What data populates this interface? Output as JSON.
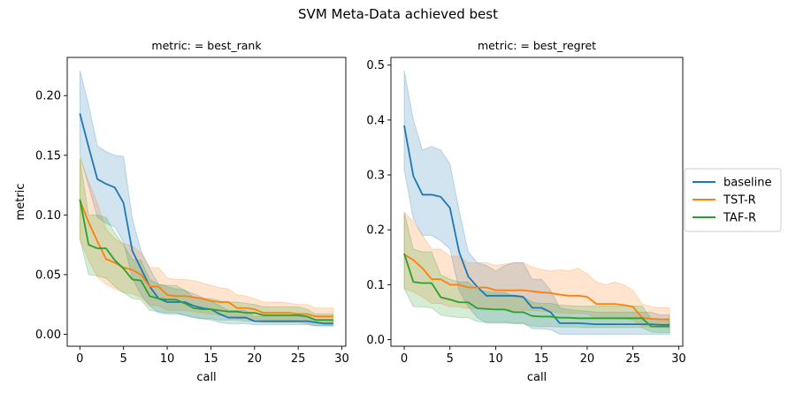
{
  "figure": {
    "suptitle": "SVM Meta-Data achieved best"
  },
  "legend": {
    "placement": "right-center",
    "entries": [
      {
        "name": "baseline",
        "color": "#1f77b4"
      },
      {
        "name": "TST-R",
        "color": "#ff7f0e"
      },
      {
        "name": "TAF-R",
        "color": "#2ca02c"
      }
    ]
  },
  "chart_data": [
    {
      "type": "line",
      "title": "metric:  = best_rank",
      "xlabel": "call",
      "ylabel": "metric",
      "xlim": [
        -1.45,
        30.45
      ],
      "ylim": [
        -0.01,
        0.232
      ],
      "xticks": [
        0,
        5,
        10,
        15,
        20,
        25,
        30
      ],
      "yticks": [
        0.0,
        0.05,
        0.1,
        0.15,
        0.2
      ],
      "ytick_labels": [
        "0.00",
        "0.05",
        "0.10",
        "0.15",
        "0.20"
      ],
      "grid": false,
      "x": [
        0,
        1,
        2,
        3,
        4,
        5,
        6,
        7,
        8,
        9,
        10,
        11,
        12,
        13,
        14,
        15,
        16,
        17,
        18,
        19,
        20,
        21,
        22,
        23,
        24,
        25,
        26,
        27,
        28,
        29
      ],
      "series": [
        {
          "name": "baseline",
          "color": "#1f77b4",
          "values": [
            0.185,
            0.157,
            0.13,
            0.126,
            0.123,
            0.11,
            0.07,
            0.055,
            0.04,
            0.03,
            0.027,
            0.027,
            0.027,
            0.024,
            0.022,
            0.021,
            0.017,
            0.014,
            0.014,
            0.014,
            0.011,
            0.011,
            0.011,
            0.011,
            0.011,
            0.011,
            0.011,
            0.01,
            0.009,
            0.009
          ],
          "lower": [
            0.15,
            0.124,
            0.098,
            0.093,
            0.09,
            0.077,
            0.047,
            0.033,
            0.024,
            0.018,
            0.017,
            0.017,
            0.016,
            0.014,
            0.013,
            0.012,
            0.01,
            0.009,
            0.009,
            0.009,
            0.008,
            0.008,
            0.008,
            0.008,
            0.008,
            0.008,
            0.008,
            0.007,
            0.007,
            0.007
          ],
          "upper": [
            0.221,
            0.192,
            0.158,
            0.153,
            0.15,
            0.149,
            0.097,
            0.07,
            0.055,
            0.042,
            0.04,
            0.038,
            0.037,
            0.034,
            0.031,
            0.028,
            0.024,
            0.02,
            0.02,
            0.02,
            0.015,
            0.015,
            0.015,
            0.015,
            0.015,
            0.015,
            0.014,
            0.012,
            0.012,
            0.012
          ]
        },
        {
          "name": "TST-R",
          "color": "#ff7f0e",
          "values": [
            0.112,
            0.094,
            0.078,
            0.063,
            0.06,
            0.056,
            0.054,
            0.05,
            0.04,
            0.04,
            0.033,
            0.032,
            0.032,
            0.031,
            0.03,
            0.028,
            0.027,
            0.027,
            0.022,
            0.022,
            0.021,
            0.018,
            0.018,
            0.018,
            0.018,
            0.017,
            0.017,
            0.015,
            0.015,
            0.015
          ],
          "lower": [
            0.08,
            0.062,
            0.048,
            0.042,
            0.038,
            0.035,
            0.034,
            0.031,
            0.024,
            0.024,
            0.02,
            0.02,
            0.02,
            0.019,
            0.018,
            0.017,
            0.016,
            0.016,
            0.013,
            0.013,
            0.013,
            0.012,
            0.012,
            0.012,
            0.012,
            0.011,
            0.011,
            0.01,
            0.01,
            0.01
          ],
          "upper": [
            0.148,
            0.128,
            0.11,
            0.088,
            0.08,
            0.076,
            0.074,
            0.068,
            0.056,
            0.056,
            0.047,
            0.046,
            0.046,
            0.045,
            0.043,
            0.041,
            0.039,
            0.038,
            0.033,
            0.032,
            0.03,
            0.027,
            0.027,
            0.027,
            0.026,
            0.025,
            0.025,
            0.022,
            0.022,
            0.022
          ]
        },
        {
          "name": "TAF-R",
          "color": "#2ca02c",
          "values": [
            0.113,
            0.075,
            0.072,
            0.072,
            0.062,
            0.055,
            0.046,
            0.045,
            0.032,
            0.03,
            0.029,
            0.029,
            0.026,
            0.022,
            0.021,
            0.021,
            0.02,
            0.019,
            0.019,
            0.018,
            0.018,
            0.016,
            0.016,
            0.016,
            0.016,
            0.016,
            0.015,
            0.012,
            0.012,
            0.012
          ],
          "lower": [
            0.08,
            0.05,
            0.049,
            0.047,
            0.04,
            0.035,
            0.03,
            0.029,
            0.02,
            0.019,
            0.018,
            0.018,
            0.016,
            0.014,
            0.013,
            0.013,
            0.012,
            0.012,
            0.012,
            0.011,
            0.011,
            0.01,
            0.01,
            0.01,
            0.01,
            0.01,
            0.009,
            0.007,
            0.007,
            0.007
          ],
          "upper": [
            0.147,
            0.1,
            0.1,
            0.098,
            0.085,
            0.075,
            0.063,
            0.062,
            0.046,
            0.042,
            0.041,
            0.041,
            0.037,
            0.031,
            0.03,
            0.03,
            0.028,
            0.027,
            0.027,
            0.026,
            0.025,
            0.023,
            0.023,
            0.023,
            0.023,
            0.023,
            0.021,
            0.017,
            0.017,
            0.017
          ]
        }
      ]
    },
    {
      "type": "line",
      "title": "metric:  = best_regret",
      "xlabel": "call",
      "ylabel": "",
      "xlim": [
        -1.45,
        30.45
      ],
      "ylim": [
        -0.012,
        0.514
      ],
      "xticks": [
        0,
        5,
        10,
        15,
        20,
        25,
        30
      ],
      "yticks": [
        0.0,
        0.1,
        0.2,
        0.3,
        0.4,
        0.5
      ],
      "ytick_labels": [
        "0.0",
        "0.1",
        "0.2",
        "0.3",
        "0.4",
        "0.5"
      ],
      "grid": false,
      "x": [
        0,
        1,
        2,
        3,
        4,
        5,
        6,
        7,
        8,
        9,
        10,
        11,
        12,
        13,
        14,
        15,
        16,
        17,
        18,
        19,
        20,
        21,
        22,
        23,
        24,
        25,
        26,
        27,
        28,
        29
      ],
      "series": [
        {
          "name": "baseline",
          "color": "#1f77b4",
          "values": [
            0.39,
            0.298,
            0.264,
            0.264,
            0.26,
            0.24,
            0.16,
            0.115,
            0.096,
            0.08,
            0.08,
            0.08,
            0.08,
            0.078,
            0.058,
            0.058,
            0.05,
            0.03,
            0.03,
            0.03,
            0.029,
            0.028,
            0.028,
            0.028,
            0.028,
            0.028,
            0.028,
            0.028,
            0.027,
            0.027
          ],
          "lower": [
            0.31,
            0.22,
            0.19,
            0.19,
            0.18,
            0.165,
            0.09,
            0.06,
            0.04,
            0.03,
            0.03,
            0.03,
            0.03,
            0.03,
            0.02,
            0.02,
            0.018,
            0.01,
            0.01,
            0.01,
            0.01,
            0.01,
            0.01,
            0.01,
            0.01,
            0.01,
            0.01,
            0.01,
            0.01,
            0.01
          ],
          "upper": [
            0.49,
            0.4,
            0.345,
            0.352,
            0.345,
            0.32,
            0.235,
            0.16,
            0.14,
            0.135,
            0.125,
            0.135,
            0.14,
            0.14,
            0.11,
            0.11,
            0.09,
            0.058,
            0.055,
            0.053,
            0.052,
            0.05,
            0.05,
            0.05,
            0.05,
            0.05,
            0.05,
            0.05,
            0.045,
            0.045
          ]
        },
        {
          "name": "TST-R",
          "color": "#ff7f0e",
          "values": [
            0.155,
            0.145,
            0.13,
            0.11,
            0.11,
            0.1,
            0.1,
            0.095,
            0.095,
            0.095,
            0.09,
            0.09,
            0.09,
            0.09,
            0.088,
            0.086,
            0.085,
            0.082,
            0.08,
            0.08,
            0.078,
            0.065,
            0.065,
            0.065,
            0.063,
            0.06,
            0.04,
            0.038,
            0.037,
            0.037
          ],
          "lower": [
            0.093,
            0.087,
            0.078,
            0.066,
            0.066,
            0.06,
            0.06,
            0.057,
            0.057,
            0.057,
            0.054,
            0.054,
            0.054,
            0.054,
            0.053,
            0.052,
            0.051,
            0.049,
            0.048,
            0.048,
            0.047,
            0.039,
            0.039,
            0.039,
            0.038,
            0.036,
            0.024,
            0.023,
            0.022,
            0.022
          ],
          "upper": [
            0.232,
            0.215,
            0.19,
            0.165,
            0.165,
            0.152,
            0.152,
            0.14,
            0.14,
            0.14,
            0.135,
            0.138,
            0.14,
            0.14,
            0.132,
            0.128,
            0.125,
            0.127,
            0.125,
            0.13,
            0.12,
            0.105,
            0.1,
            0.105,
            0.1,
            0.09,
            0.065,
            0.06,
            0.058,
            0.058
          ]
        },
        {
          "name": "TAF-R",
          "color": "#2ca02c",
          "values": [
            0.157,
            0.105,
            0.103,
            0.103,
            0.077,
            0.073,
            0.068,
            0.068,
            0.057,
            0.056,
            0.055,
            0.055,
            0.05,
            0.05,
            0.043,
            0.042,
            0.042,
            0.04,
            0.04,
            0.039,
            0.039,
            0.039,
            0.039,
            0.039,
            0.039,
            0.039,
            0.039,
            0.024,
            0.024,
            0.024
          ],
          "lower": [
            0.093,
            0.06,
            0.06,
            0.058,
            0.045,
            0.042,
            0.04,
            0.04,
            0.033,
            0.032,
            0.032,
            0.032,
            0.029,
            0.029,
            0.025,
            0.024,
            0.024,
            0.023,
            0.023,
            0.023,
            0.022,
            0.022,
            0.022,
            0.022,
            0.022,
            0.022,
            0.022,
            0.014,
            0.013,
            0.013
          ],
          "upper": [
            0.232,
            0.165,
            0.16,
            0.16,
            0.118,
            0.11,
            0.105,
            0.105,
            0.09,
            0.088,
            0.086,
            0.086,
            0.078,
            0.078,
            0.068,
            0.066,
            0.066,
            0.063,
            0.062,
            0.061,
            0.061,
            0.061,
            0.061,
            0.061,
            0.061,
            0.061,
            0.061,
            0.038,
            0.037,
            0.037
          ]
        }
      ]
    }
  ]
}
